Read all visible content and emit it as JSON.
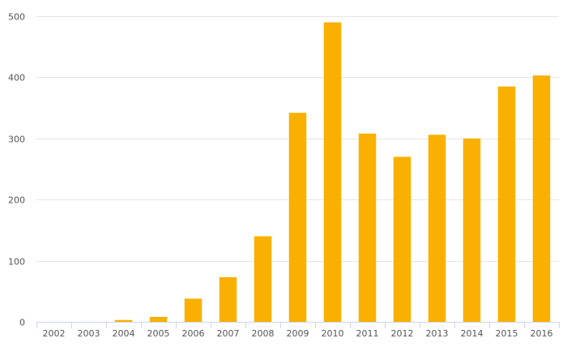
{
  "chart_data": {
    "type": "bar",
    "title": "",
    "xlabel": "",
    "ylabel": "",
    "categories": [
      "2002",
      "2003",
      "2004",
      "2005",
      "2006",
      "2007",
      "2008",
      "2009",
      "2010",
      "2011",
      "2012",
      "2013",
      "2014",
      "2015",
      "2016"
    ],
    "values": [
      0,
      0,
      3,
      8,
      38,
      73,
      140,
      342,
      490,
      308,
      270,
      306,
      300,
      385,
      403
    ],
    "ylim": [
      0,
      500
    ],
    "yticks": [
      0,
      100,
      200,
      300,
      400,
      500
    ],
    "grid": true,
    "legend": "none",
    "colors": {
      "bar": "#f9b000",
      "grid": "#e6e6e6",
      "axis": "#ccd6eb",
      "text": "#555555"
    }
  }
}
